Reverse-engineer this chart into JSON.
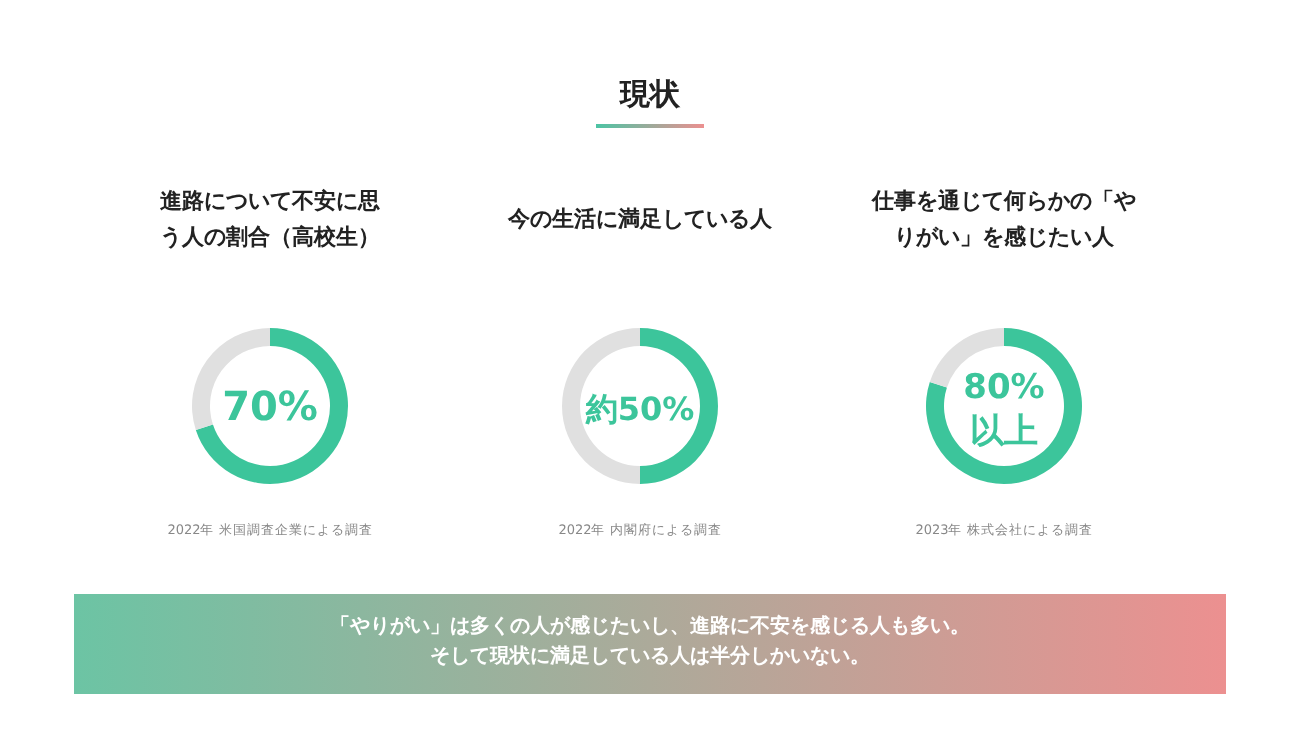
{
  "chart_data": [
    {
      "type": "other",
      "title": "現状"
    },
    {
      "type": "donut",
      "title": "進路について不安に思う人の割合（高校生）",
      "categories": [
        null,
        null
      ],
      "values": [
        70,
        30
      ],
      "colors": [
        "#3cc59b",
        "#e0e0e0"
      ],
      "annotations": [
        "70%",
        "2022年 米国調査企業による調査"
      ]
    },
    {
      "type": "donut",
      "title": "今の生活に満足している人",
      "categories": [
        null,
        null
      ],
      "values": [
        50,
        50
      ],
      "colors": [
        "#3cc59b",
        "#e0e0e0"
      ],
      "annotations": [
        "約50%",
        "2022年 内閣府による調査"
      ]
    },
    {
      "type": "donut",
      "title": "仕事を通じて何らかの「やりがい」を感じたい人",
      "categories": [
        null,
        null
      ],
      "values": [
        80,
        20
      ],
      "colors": [
        "#3cc59b",
        "#e0e0e0"
      ],
      "annotations": [
        "80%\n以上",
        "2023年 株式会社による調査"
      ]
    },
    {
      "type": "other",
      "annotations": [
        "「やりがい」は多くの人が感じたいし、進路に不安を感じる人も多い。",
        "そして現状に満足している人は半分しかいない。"
      ]
    }
  ]
}
